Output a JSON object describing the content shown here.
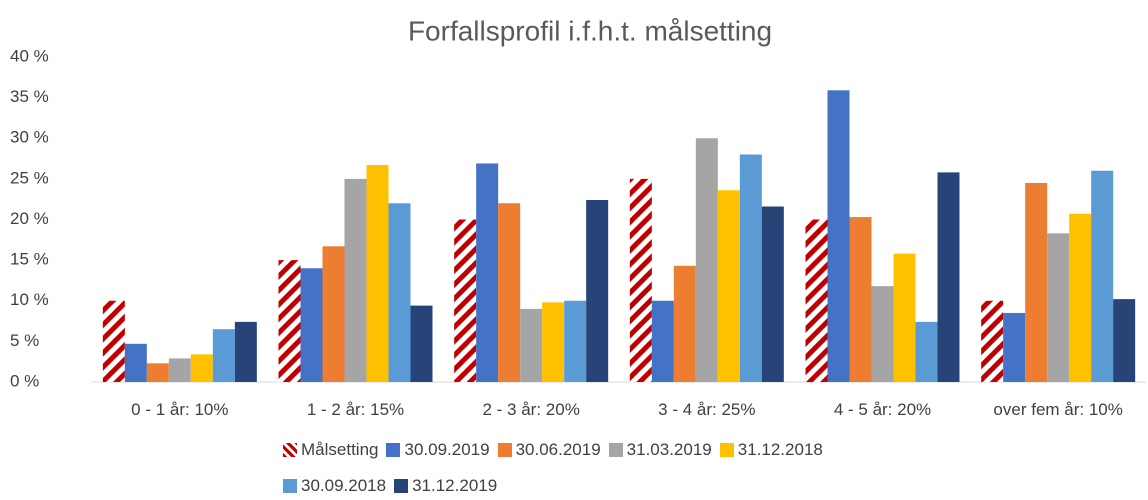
{
  "chart_data": {
    "type": "bar",
    "title": "Forfallsprofil i.f.h.t. målsetting",
    "categories": [
      "0 - 1 år: 10%",
      "1 - 2 år: 15%",
      "2 - 3 år: 20%",
      "3 - 4 år: 25%",
      "4 - 5 år: 20%",
      "over fem år: 10%"
    ],
    "series": [
      {
        "name": "Målsetting",
        "color": "#c00000",
        "hatch": true,
        "values": [
          10,
          15,
          20,
          25,
          20,
          10
        ]
      },
      {
        "name": "30.09.2019",
        "color": "#4472c4",
        "values": [
          4.7,
          14,
          26.9,
          10,
          35.9,
          8.5
        ]
      },
      {
        "name": "30.06.2019",
        "color": "#ed7d31",
        "values": [
          2.3,
          16.7,
          22,
          14.3,
          20.3,
          24.5
        ]
      },
      {
        "name": "31.03.2019",
        "color": "#a5a5a5",
        "values": [
          2.9,
          25,
          9,
          30,
          11.8,
          18.3
        ]
      },
      {
        "name": "31.12.2018",
        "color": "#ffc000",
        "values": [
          3.4,
          26.7,
          9.8,
          23.6,
          15.8,
          20.7
        ]
      },
      {
        "name": "30.09.2018",
        "color": "#5b9bd5",
        "values": [
          6.5,
          22,
          10,
          28,
          7.4,
          26
        ]
      },
      {
        "name": "31.12.2019",
        "color": "#264478",
        "values": [
          7.4,
          9.4,
          22.4,
          21.6,
          25.8,
          10.2
        ]
      }
    ],
    "ylim": [
      0,
      40
    ],
    "yticks": [
      {
        "value": 0,
        "label": "0 %"
      },
      {
        "value": 5,
        "label": "5 %"
      },
      {
        "value": 10,
        "label": "10 %"
      },
      {
        "value": 15,
        "label": "15 %"
      },
      {
        "value": 20,
        "label": "20 %"
      },
      {
        "value": 25,
        "label": "25 %"
      },
      {
        "value": 30,
        "label": "30 %"
      },
      {
        "value": 35,
        "label": "35 %"
      },
      {
        "value": 40,
        "label": "40 %"
      }
    ],
    "grid": false,
    "legend": "bottom"
  }
}
